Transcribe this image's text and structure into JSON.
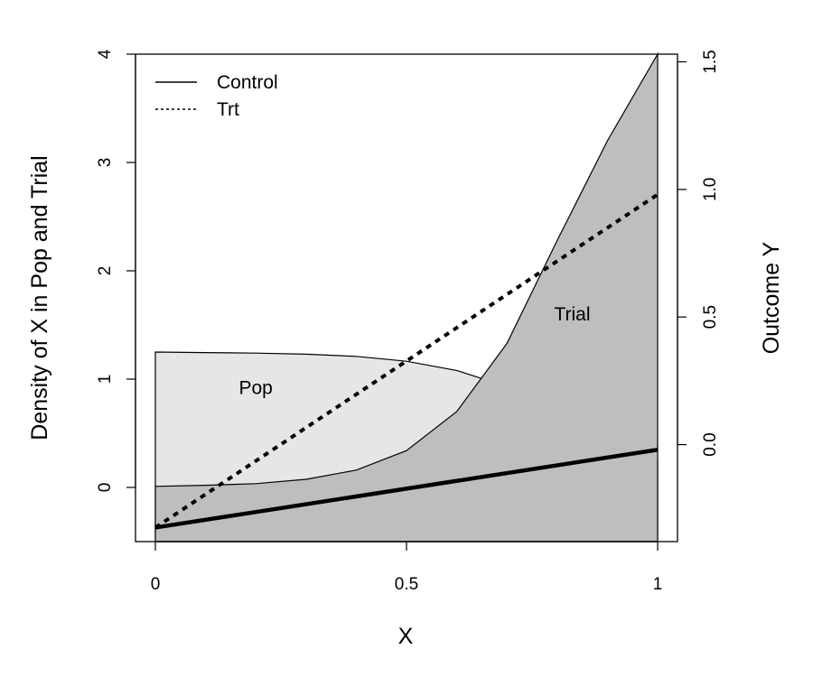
{
  "chart_data": {
    "type": "area",
    "xlabel": "X",
    "ylabel": "Density of X in Pop and Trial",
    "ylabel_right": "Outcome Y",
    "xlim": [
      0,
      1
    ],
    "ylim": [
      -0.5,
      4
    ],
    "ylim_right": [
      -0.38,
      1.53
    ],
    "x_ticks": [
      0,
      0.5,
      1
    ],
    "x_tick_labels": [
      "0",
      "0.5",
      "1"
    ],
    "y_ticks": [
      0,
      1,
      2,
      3,
      4
    ],
    "y_tick_labels": [
      "0",
      "1",
      "2",
      "3",
      "4"
    ],
    "y_right_ticks": [
      0,
      0.5,
      1,
      1.5
    ],
    "y_right_tick_labels": [
      "0.0",
      "0.5",
      "1.0",
      "1.5"
    ],
    "grid": false,
    "legend_position": "top-left",
    "legend": [
      {
        "label": "Control",
        "style": "solid"
      },
      {
        "label": "Trt",
        "style": "dotted"
      }
    ],
    "annotations": [
      {
        "text": "Pop",
        "x": 0.2,
        "y": 0.92
      },
      {
        "text": "Trial",
        "x": 0.83,
        "y": 1.6
      }
    ],
    "densities": [
      {
        "name": "Pop",
        "axis": "left",
        "fill": "#e6e6e6",
        "stroke": "#000000",
        "x": [
          0,
          0.1,
          0.2,
          0.3,
          0.4,
          0.5,
          0.6,
          0.7,
          0.8,
          0.9,
          1.0
        ],
        "y": [
          1.25,
          1.245,
          1.24,
          1.23,
          1.21,
          1.165,
          1.08,
          0.93,
          0.72,
          0.47,
          0.25
        ]
      },
      {
        "name": "Trial",
        "axis": "left",
        "fill": "#bebebe",
        "stroke": "#000000",
        "x": [
          0,
          0.1,
          0.2,
          0.3,
          0.4,
          0.5,
          0.6,
          0.7,
          0.8,
          0.9,
          1.0
        ],
        "y": [
          0.01,
          0.02,
          0.035,
          0.075,
          0.16,
          0.34,
          0.7,
          1.33,
          2.28,
          3.2,
          4.0
        ]
      }
    ],
    "series": [
      {
        "name": "Control",
        "axis": "right",
        "style": "solid",
        "x": [
          0,
          1
        ],
        "values": [
          -0.325,
          -0.02
        ]
      },
      {
        "name": "Trt",
        "axis": "right",
        "style": "dotted",
        "x": [
          0,
          1
        ],
        "values": [
          -0.325,
          0.98
        ]
      }
    ]
  }
}
